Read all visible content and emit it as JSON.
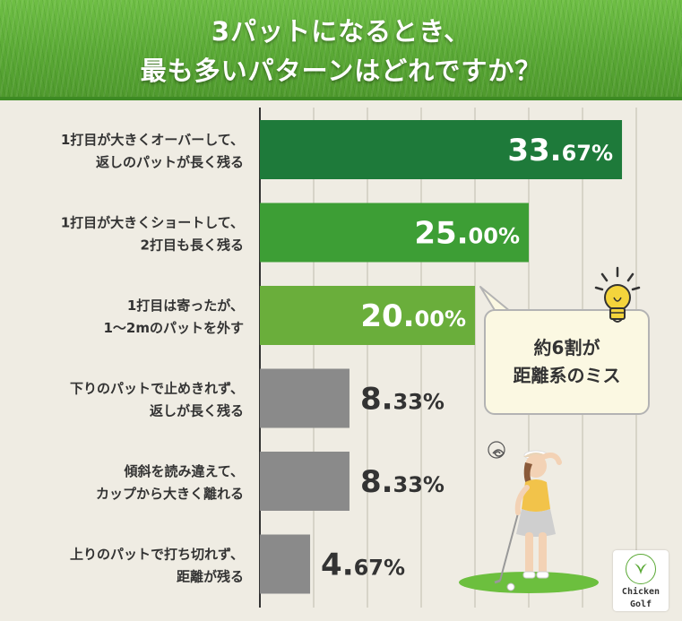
{
  "header": {
    "title_line1": "3パットになるとき、",
    "title_line2": "最も多いパターンはどれですか？"
  },
  "callout": {
    "line1": "約6割が",
    "line2": "距離系のミス"
  },
  "logo": {
    "line1": "Chicken",
    "line2": "Golf"
  },
  "colors": {
    "bar1": "#1e7a3a",
    "bar2": "#3d9e35",
    "bar3": "#6aae3b",
    "bar_gray": "#8a8a8a",
    "background": "#efece3",
    "header_green": "#5aa935"
  },
  "chart_data": {
    "type": "bar",
    "orientation": "horizontal",
    "categories": [
      [
        "1打目が大きくオーバーして、",
        "返しのパットが長く残る"
      ],
      [
        "1打目が大きくショートして、",
        "2打目も長く残る"
      ],
      [
        "1打目は寄ったが、",
        "1〜2mのパットを外す"
      ],
      [
        "下りのパットで止めきれず、",
        "返しが長く残る"
      ],
      [
        "傾斜を読み違えて、",
        "カップから大きく離れる"
      ],
      [
        "上りのパットで打ち切れず、",
        "距離が残る"
      ]
    ],
    "values": [
      33.67,
      25.0,
      20.0,
      8.33,
      8.33,
      4.67
    ],
    "value_labels": [
      {
        "int": "33.",
        "dec": "67%"
      },
      {
        "int": "25.",
        "dec": "00%"
      },
      {
        "int": "20.",
        "dec": "00%"
      },
      {
        "int": "8.",
        "dec": "33%"
      },
      {
        "int": "8.",
        "dec": "33%"
      },
      {
        "int": "4.",
        "dec": "67%"
      }
    ],
    "xlim": [
      0,
      36
    ],
    "grid": true,
    "legend": "none",
    "title": "",
    "xlabel": "",
    "ylabel": ""
  }
}
